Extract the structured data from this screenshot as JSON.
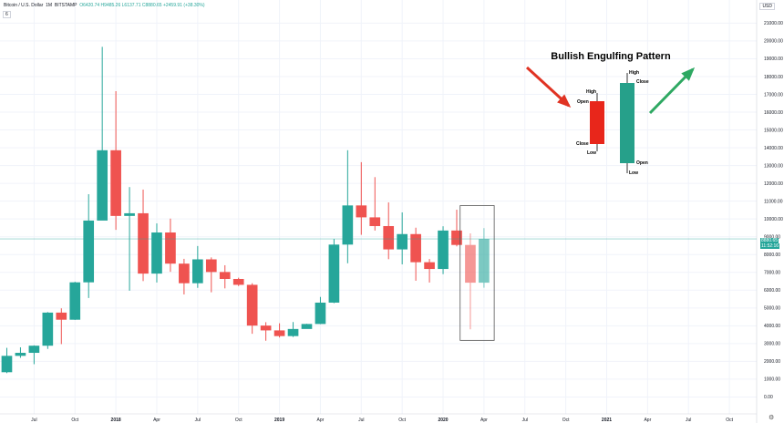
{
  "header": {
    "symbol": "Bitcoin / U.S. Dollar",
    "interval": "1M",
    "exchange": "BITSTAMP",
    "ohlc": "O6420.74  H9485.26  L6137.71  C8880.65  +2459.91 (+38.30%)",
    "toggle_label": "6"
  },
  "currency": "USD",
  "price_tag": "8880.65",
  "countdown_tag": "11:52:16",
  "annotation": {
    "title": "Bullish Engulfing Pattern",
    "bear_labels": {
      "high": "High",
      "open": "Open",
      "close": "Close",
      "low": "Low"
    },
    "bull_labels": {
      "high": "High",
      "close": "Close",
      "open": "Open",
      "low": "Low"
    }
  },
  "colors": {
    "up": "#26a69a",
    "down": "#ef5350",
    "grid": "#f0f3fa",
    "axis_text": "#131722"
  },
  "chart_data": {
    "type": "candlestick",
    "yticks": [
      0,
      1000,
      2000,
      3000,
      4000,
      5000,
      6000,
      7000,
      8000,
      9000,
      10000,
      11000,
      12000,
      13000,
      14000,
      15000,
      16000,
      17000,
      18000,
      19000,
      20000,
      21000
    ],
    "ytick_labels": [
      "0.00",
      "1000.00",
      "2000.00",
      "3000.00",
      "4000.00",
      "5000.00",
      "6000.00",
      "7000.00",
      "8000.00",
      "9000.00",
      "10000.00",
      "11000.00",
      "12000.00",
      "13000.00",
      "14000.00",
      "15000.00",
      "16000.00",
      "17000.00",
      "18000.00",
      "19000.00",
      "20000.00",
      "21000.00"
    ],
    "ylim": [
      -950,
      22300
    ],
    "xlim": [
      -0.5,
      55
    ],
    "xticks": [
      {
        "i": 2,
        "label": "Jul",
        "bold": false
      },
      {
        "i": 5,
        "label": "Oct",
        "bold": false
      },
      {
        "i": 8,
        "label": "2018",
        "bold": true
      },
      {
        "i": 11,
        "label": "Apr",
        "bold": false
      },
      {
        "i": 14,
        "label": "Jul",
        "bold": false
      },
      {
        "i": 17,
        "label": "Oct",
        "bold": false
      },
      {
        "i": 20,
        "label": "2019",
        "bold": true
      },
      {
        "i": 23,
        "label": "Apr",
        "bold": false
      },
      {
        "i": 26,
        "label": "Jul",
        "bold": false
      },
      {
        "i": 29,
        "label": "Oct",
        "bold": false
      },
      {
        "i": 32,
        "label": "2020",
        "bold": true
      },
      {
        "i": 35,
        "label": "Apr",
        "bold": false
      },
      {
        "i": 38,
        "label": "Jul",
        "bold": false
      },
      {
        "i": 41,
        "label": "Oct",
        "bold": false
      },
      {
        "i": 44,
        "label": "2021",
        "bold": true
      },
      {
        "i": 47,
        "label": "Apr",
        "bold": false
      },
      {
        "i": 50,
        "label": "Jul",
        "bold": false
      },
      {
        "i": 53,
        "label": "Oct",
        "bold": false
      }
    ],
    "last_price": 8880.65,
    "candles": [
      {
        "t": "2017-04",
        "o": 1390,
        "h": 2760,
        "l": 1340,
        "c": 2310
      },
      {
        "t": "2017-05",
        "o": 2310,
        "h": 2790,
        "l": 2200,
        "c": 2480
      },
      {
        "t": "2017-06",
        "o": 2480,
        "h": 2900,
        "l": 1840,
        "c": 2880
      },
      {
        "t": "2017-07",
        "o": 2880,
        "h": 4770,
        "l": 2700,
        "c": 4740
      },
      {
        "t": "2017-08",
        "o": 4740,
        "h": 4980,
        "l": 2970,
        "c": 4340
      },
      {
        "t": "2017-09",
        "o": 4340,
        "h": 6470,
        "l": 4330,
        "c": 6440
      },
      {
        "t": "2017-10",
        "o": 6440,
        "h": 11390,
        "l": 5560,
        "c": 9910
      },
      {
        "t": "2017-11",
        "o": 9910,
        "h": 19670,
        "l": 9960,
        "c": 13860
      },
      {
        "t": "2017-12",
        "o": 13860,
        "h": 17180,
        "l": 9390,
        "c": 10170
      },
      {
        "t": "2018-01",
        "o": 10170,
        "h": 11790,
        "l": 5970,
        "c": 10320
      },
      {
        "t": "2018-02",
        "o": 10320,
        "h": 11650,
        "l": 6510,
        "c": 6930
      },
      {
        "t": "2018-03",
        "o": 6930,
        "h": 9750,
        "l": 6430,
        "c": 9240
      },
      {
        "t": "2018-04",
        "o": 9240,
        "h": 10020,
        "l": 7030,
        "c": 7490
      },
      {
        "t": "2018-05",
        "o": 7490,
        "h": 7760,
        "l": 5760,
        "c": 6390
      },
      {
        "t": "2018-06",
        "o": 6390,
        "h": 8480,
        "l": 6130,
        "c": 7730
      },
      {
        "t": "2018-07",
        "o": 7730,
        "h": 7840,
        "l": 5880,
        "c": 7020
      },
      {
        "t": "2018-08",
        "o": 7020,
        "h": 7400,
        "l": 6100,
        "c": 6630
      },
      {
        "t": "2018-09",
        "o": 6630,
        "h": 6700,
        "l": 6230,
        "c": 6300
      },
      {
        "t": "2018-10",
        "o": 6300,
        "h": 6390,
        "l": 3550,
        "c": 4010
      },
      {
        "t": "2018-11",
        "o": 4010,
        "h": 4200,
        "l": 3160,
        "c": 3740
      },
      {
        "t": "2018-12",
        "o": 3740,
        "h": 4140,
        "l": 3340,
        "c": 3420
      },
      {
        "t": "2019-01",
        "o": 3420,
        "h": 4210,
        "l": 3370,
        "c": 3820
      },
      {
        "t": "2019-02",
        "o": 3820,
        "h": 4110,
        "l": 3840,
        "c": 4100
      },
      {
        "t": "2019-03",
        "o": 4100,
        "h": 5620,
        "l": 4090,
        "c": 5300
      },
      {
        "t": "2019-04",
        "o": 5300,
        "h": 8880,
        "l": 5270,
        "c": 8560
      },
      {
        "t": "2019-05",
        "o": 8560,
        "h": 13860,
        "l": 7510,
        "c": 10760
      },
      {
        "t": "2019-06",
        "o": 10760,
        "h": 13190,
        "l": 9110,
        "c": 10090
      },
      {
        "t": "2019-07",
        "o": 10090,
        "h": 12350,
        "l": 9350,
        "c": 9600
      },
      {
        "t": "2019-08",
        "o": 9600,
        "h": 10930,
        "l": 7740,
        "c": 8290
      },
      {
        "t": "2019-09",
        "o": 8290,
        "h": 10370,
        "l": 7450,
        "c": 9150
      },
      {
        "t": "2019-10",
        "o": 9150,
        "h": 9510,
        "l": 6530,
        "c": 7570
      },
      {
        "t": "2019-11",
        "o": 7570,
        "h": 7750,
        "l": 6430,
        "c": 7190
      },
      {
        "t": "2019-12",
        "o": 7190,
        "h": 9590,
        "l": 6900,
        "c": 9350
      },
      {
        "t": "2020-01",
        "o": 9350,
        "h": 10520,
        "l": 8460,
        "c": 8540
      },
      {
        "t": "2020-02",
        "o": 8540,
        "h": 9190,
        "l": 3800,
        "c": 6420
      },
      {
        "t": "2020-03",
        "o": 6420,
        "h": 9485.26,
        "l": 6137.71,
        "c": 8880.65
      }
    ]
  }
}
